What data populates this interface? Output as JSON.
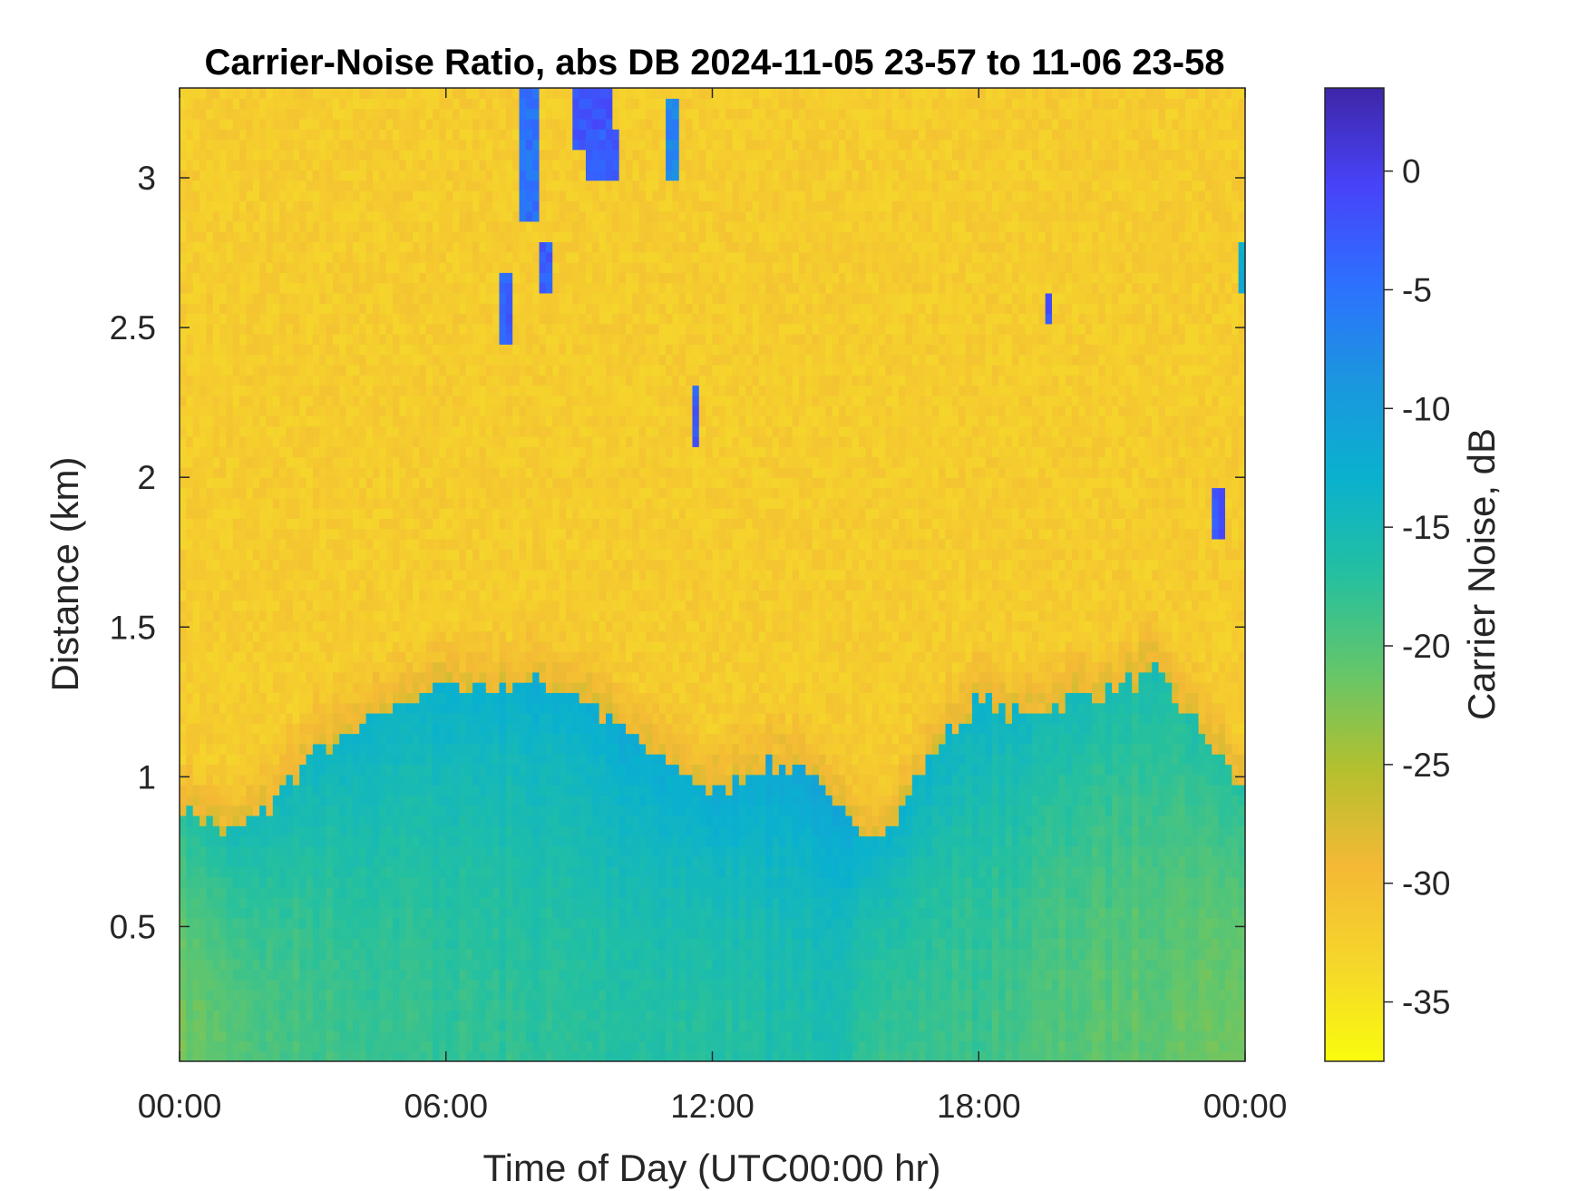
{
  "chart_data": {
    "type": "heatmap",
    "title": "Carrier-Noise Ratio, abs DB 2024-11-05 23-57 to 11-06 23-58",
    "xlabel": "Time of Day (UTC00:00 hr)",
    "ylabel": "Distance (km)",
    "x_unit": "hours",
    "xlim": [
      0,
      24
    ],
    "ylim": [
      0.05,
      3.3
    ],
    "x_ticks": [
      0,
      6,
      12,
      18,
      24
    ],
    "x_tick_labels": [
      "00:00",
      "06:00",
      "12:00",
      "18:00",
      "00:00"
    ],
    "y_ticks": [
      0.5,
      1,
      1.5,
      2,
      2.5,
      3
    ],
    "y_tick_labels": [
      "0.5",
      "1",
      "1.5",
      "2",
      "2.5",
      "3"
    ],
    "colorbar": {
      "label": "Carrier Noise, dB",
      "range": [
        -37.5,
        3.5
      ],
      "ticks": [
        0,
        -5,
        -10,
        -15,
        -20,
        -25,
        -30,
        -35
      ],
      "tick_labels": [
        "0",
        "-5",
        "-10",
        "-15",
        "-20",
        "-25",
        "-30",
        "-35"
      ],
      "colormap": "parula",
      "colors": [
        "#3e26a8",
        "#4743f8",
        "#2d70ff",
        "#1b96df",
        "#0ab1ce",
        "#24c0a0",
        "#64c66a",
        "#b4c02e",
        "#f4b935",
        "#f5d62b",
        "#f9fb0e"
      ]
    },
    "background_level_dB": -32,
    "boundary_layer_top_km": [
      [
        0,
        0.9
      ],
      [
        1.2,
        0.8
      ],
      [
        2,
        0.9
      ],
      [
        3,
        1.08
      ],
      [
        4,
        1.15
      ],
      [
        5,
        1.25
      ],
      [
        6,
        1.3
      ],
      [
        7,
        1.3
      ],
      [
        8,
        1.32
      ],
      [
        9,
        1.28
      ],
      [
        10,
        1.15
      ],
      [
        11,
        1.05
      ],
      [
        12,
        0.95
      ],
      [
        13,
        1.02
      ],
      [
        14,
        1.05
      ],
      [
        15,
        0.85
      ],
      [
        16,
        0.82
      ],
      [
        17,
        1.1
      ],
      [
        18,
        1.25
      ],
      [
        19,
        1.2
      ],
      [
        20,
        1.25
      ],
      [
        21,
        1.3
      ],
      [
        22,
        1.35
      ],
      [
        23,
        1.15
      ],
      [
        24,
        0.95
      ]
    ],
    "boundary_layer_min_dB": [
      [
        0,
        -22
      ],
      [
        2,
        -19.5
      ],
      [
        4,
        -18.5
      ],
      [
        6,
        -18
      ],
      [
        8,
        -17.5
      ],
      [
        10,
        -17
      ],
      [
        12,
        -17
      ],
      [
        14,
        -16
      ],
      [
        15,
        -16.5
      ],
      [
        16,
        -18
      ],
      [
        18,
        -18.5
      ],
      [
        20,
        -20
      ],
      [
        22,
        -21
      ],
      [
        24,
        -22
      ]
    ],
    "cloud_features": [
      {
        "t": [
          7.6,
          8.1
        ],
        "km": [
          2.85,
          3.3
        ],
        "dB": -5
      },
      {
        "t": [
          8.8,
          9.8
        ],
        "km": [
          3.1,
          3.3
        ],
        "dB": -2
      },
      {
        "t": [
          9.1,
          9.9
        ],
        "km": [
          3.0,
          3.15
        ],
        "dB": -3
      },
      {
        "t": [
          11.0,
          11.3
        ],
        "km": [
          2.98,
          3.25
        ],
        "dB": -7
      },
      {
        "t": [
          7.25,
          7.45
        ],
        "km": [
          2.45,
          2.7
        ],
        "dB": -3
      },
      {
        "t": [
          8.1,
          8.35
        ],
        "km": [
          2.6,
          2.8
        ],
        "dB": -3
      },
      {
        "t": [
          11.6,
          11.75
        ],
        "km": [
          2.1,
          2.3
        ],
        "dB": -3
      },
      {
        "t": [
          19.5,
          19.65
        ],
        "km": [
          2.5,
          2.6
        ],
        "dB": -2
      },
      {
        "t": [
          23.3,
          23.6
        ],
        "km": [
          1.8,
          1.98
        ],
        "dB": -2
      },
      {
        "t": [
          23.8,
          24.0
        ],
        "km": [
          2.62,
          2.78
        ],
        "dB": -12
      }
    ]
  }
}
